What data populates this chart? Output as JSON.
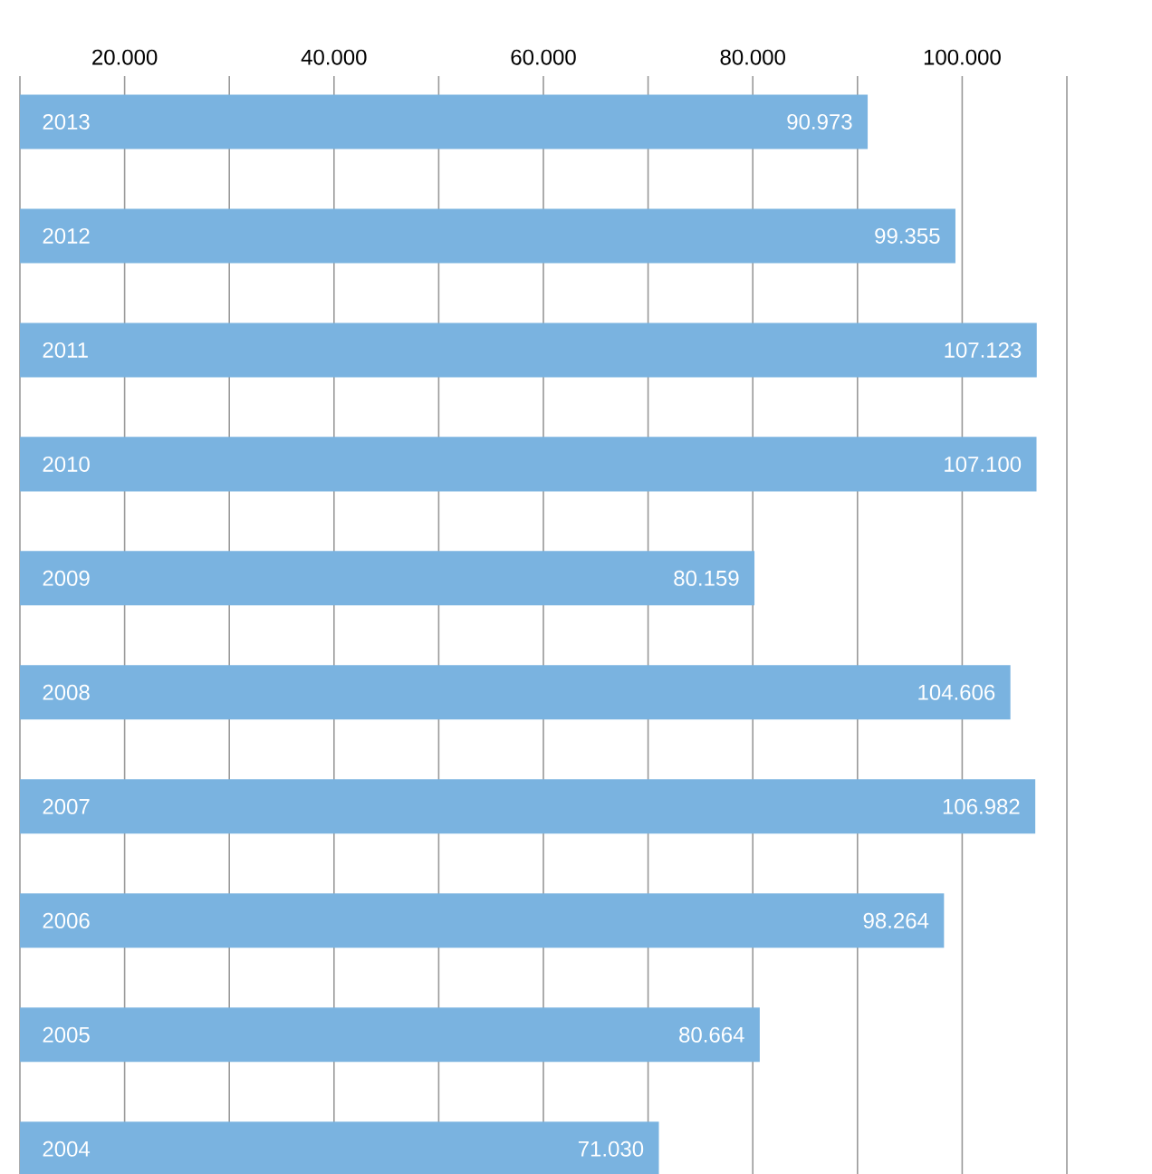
{
  "chart_data": {
    "type": "bar",
    "orientation": "horizontal",
    "categories": [
      "2013",
      "2012",
      "2011",
      "2010",
      "2009",
      "2008",
      "2007",
      "2006",
      "2005",
      "2004"
    ],
    "values": [
      90973,
      99355,
      107123,
      107100,
      80159,
      104606,
      106982,
      98264,
      80664,
      71030
    ],
    "value_labels": [
      "90.973",
      "99.355",
      "107.123",
      "107.100",
      "80.159",
      "104.606",
      "106.982",
      "98.264",
      "80.664",
      "71.030"
    ],
    "color": "#7ab3e0",
    "xlim": [
      10000,
      110000
    ],
    "xticks": [
      {
        "value": 10000,
        "label": null
      },
      {
        "value": 20000,
        "label": "20.000"
      },
      {
        "value": 30000,
        "label": null
      },
      {
        "value": 40000,
        "label": "40.000"
      },
      {
        "value": 50000,
        "label": null
      },
      {
        "value": 60000,
        "label": "60.000"
      },
      {
        "value": 70000,
        "label": null
      },
      {
        "value": 80000,
        "label": "80.000"
      },
      {
        "value": 90000,
        "label": null
      },
      {
        "value": 100000,
        "label": "100.000"
      },
      {
        "value": 110000,
        "label": null
      }
    ],
    "grid": "x"
  }
}
